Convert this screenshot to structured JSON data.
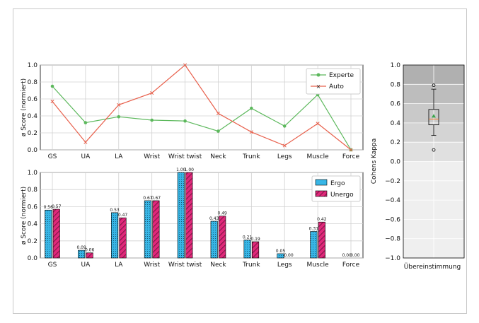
{
  "chart_data": [
    {
      "type": "line",
      "ylabel": "ø Score (normiert)",
      "ylim": [
        0,
        1
      ],
      "yticks": [
        "0.0",
        "0.2",
        "0.4",
        "0.6",
        "0.8",
        "1.0"
      ],
      "grid": true,
      "legend_position": "top-right",
      "categories": [
        "GS",
        "UA",
        "LA",
        "Wrist",
        "Wrist twist",
        "Neck",
        "Trunk",
        "Legs",
        "Muscle",
        "Force"
      ],
      "series": [
        {
          "name": "Experte",
          "color": "#5cb85c",
          "marker": "circle",
          "values": [
            0.75,
            0.32,
            0.39,
            0.35,
            0.34,
            0.22,
            0.49,
            0.28,
            0.65,
            0.0
          ]
        },
        {
          "name": "Auto",
          "color": "#e8604c",
          "marker": "x",
          "values": [
            0.57,
            0.09,
            0.53,
            0.67,
            1.0,
            0.43,
            0.21,
            0.05,
            0.31,
            0.0
          ]
        }
      ]
    },
    {
      "type": "bar",
      "ylabel": "ø Score (normiert)",
      "ylim": [
        0,
        1
      ],
      "yticks": [
        "0.0",
        "0.2",
        "0.4",
        "0.6",
        "0.8",
        "1.0"
      ],
      "grid": true,
      "legend_position": "top-right",
      "categories": [
        "GS",
        "UA",
        "LA",
        "Wrist",
        "Wrist twist",
        "Neck",
        "Trunk",
        "Legs",
        "Muscle",
        "Force"
      ],
      "series": [
        {
          "name": "Ergo",
          "color": "#38b6e6",
          "pattern": "dots",
          "values": [
            0.56,
            0.09,
            0.53,
            0.67,
            1.0,
            0.43,
            0.21,
            0.05,
            0.31,
            0.0
          ],
          "labels": [
            "0.56",
            "0.09",
            "0.53",
            "0.67",
            "1.00",
            "0.43",
            "0.21",
            "0.05",
            "0.31",
            "0.00"
          ]
        },
        {
          "name": "Unergo",
          "color": "#e0287a",
          "pattern": "hatch",
          "values": [
            0.57,
            0.06,
            0.47,
            0.67,
            1.0,
            0.49,
            0.19,
            0.0,
            0.42,
            0.0
          ],
          "labels": [
            "0.57",
            "0.06",
            "0.47",
            "0.67",
            "1.00",
            "0.49",
            "0.19",
            "0.00",
            "0.42",
            "0.00"
          ]
        }
      ]
    },
    {
      "type": "box",
      "ylabel": "Cohens Kappa",
      "ylim": [
        -1,
        1
      ],
      "yticks": [
        "1.0",
        "0.8",
        "0.6",
        "0.4",
        "0.2",
        "0.0",
        "−0.2",
        "−0.4",
        "−0.6",
        "−0.8",
        "−1.0"
      ],
      "category": "Übereinstimmung",
      "box": {
        "whisker_low": 0.27,
        "q1": 0.38,
        "median": 0.44,
        "q3": 0.54,
        "whisker_high": 0.75,
        "mean": 0.47,
        "outliers": [
          0.79,
          0.12
        ]
      },
      "bands": [
        {
          "from": 0.8,
          "to": 1.0,
          "color": "#b0b0b0"
        },
        {
          "from": 0.6,
          "to": 0.8,
          "color": "#bdbdbd"
        },
        {
          "from": 0.4,
          "to": 0.6,
          "color": "#c9c9c9"
        },
        {
          "from": 0.2,
          "to": 0.4,
          "color": "#d4d4d4"
        },
        {
          "from": 0.0,
          "to": 0.2,
          "color": "#e0e0e0"
        },
        {
          "from": -1.0,
          "to": 0.0,
          "color": "#efefef"
        }
      ]
    }
  ]
}
